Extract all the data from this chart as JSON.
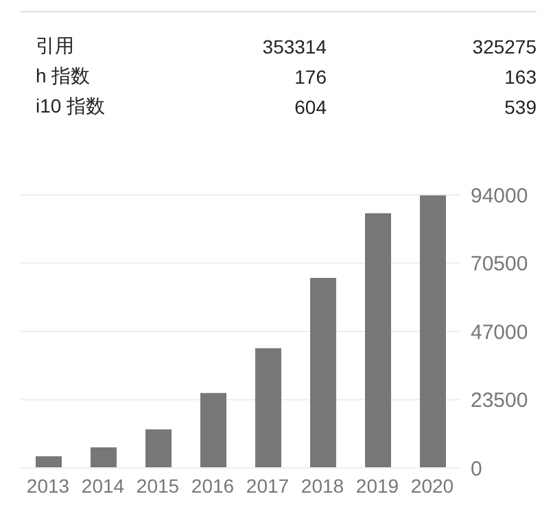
{
  "chart_data": [
    {
      "type": "other",
      "categories": [
        "引用",
        "h 指数",
        "i10 指数"
      ],
      "series": [
        {
          "values": [
            353314,
            176,
            604
          ]
        },
        {
          "values": [
            325275,
            163,
            539
          ]
        }
      ],
      "data_labels": true
    },
    {
      "type": "bar",
      "categories": [
        "2013",
        "2014",
        "2015",
        "2016",
        "2017",
        "2018",
        "2019",
        "2020"
      ],
      "values": [
        4000,
        7100,
        13300,
        25800,
        41200,
        65400,
        87700,
        93800
      ],
      "color": "#777777",
      "ylim": [
        0,
        94000
      ],
      "yticks": [
        0,
        23500,
        47000,
        70500,
        94000
      ],
      "grid": "y"
    }
  ]
}
